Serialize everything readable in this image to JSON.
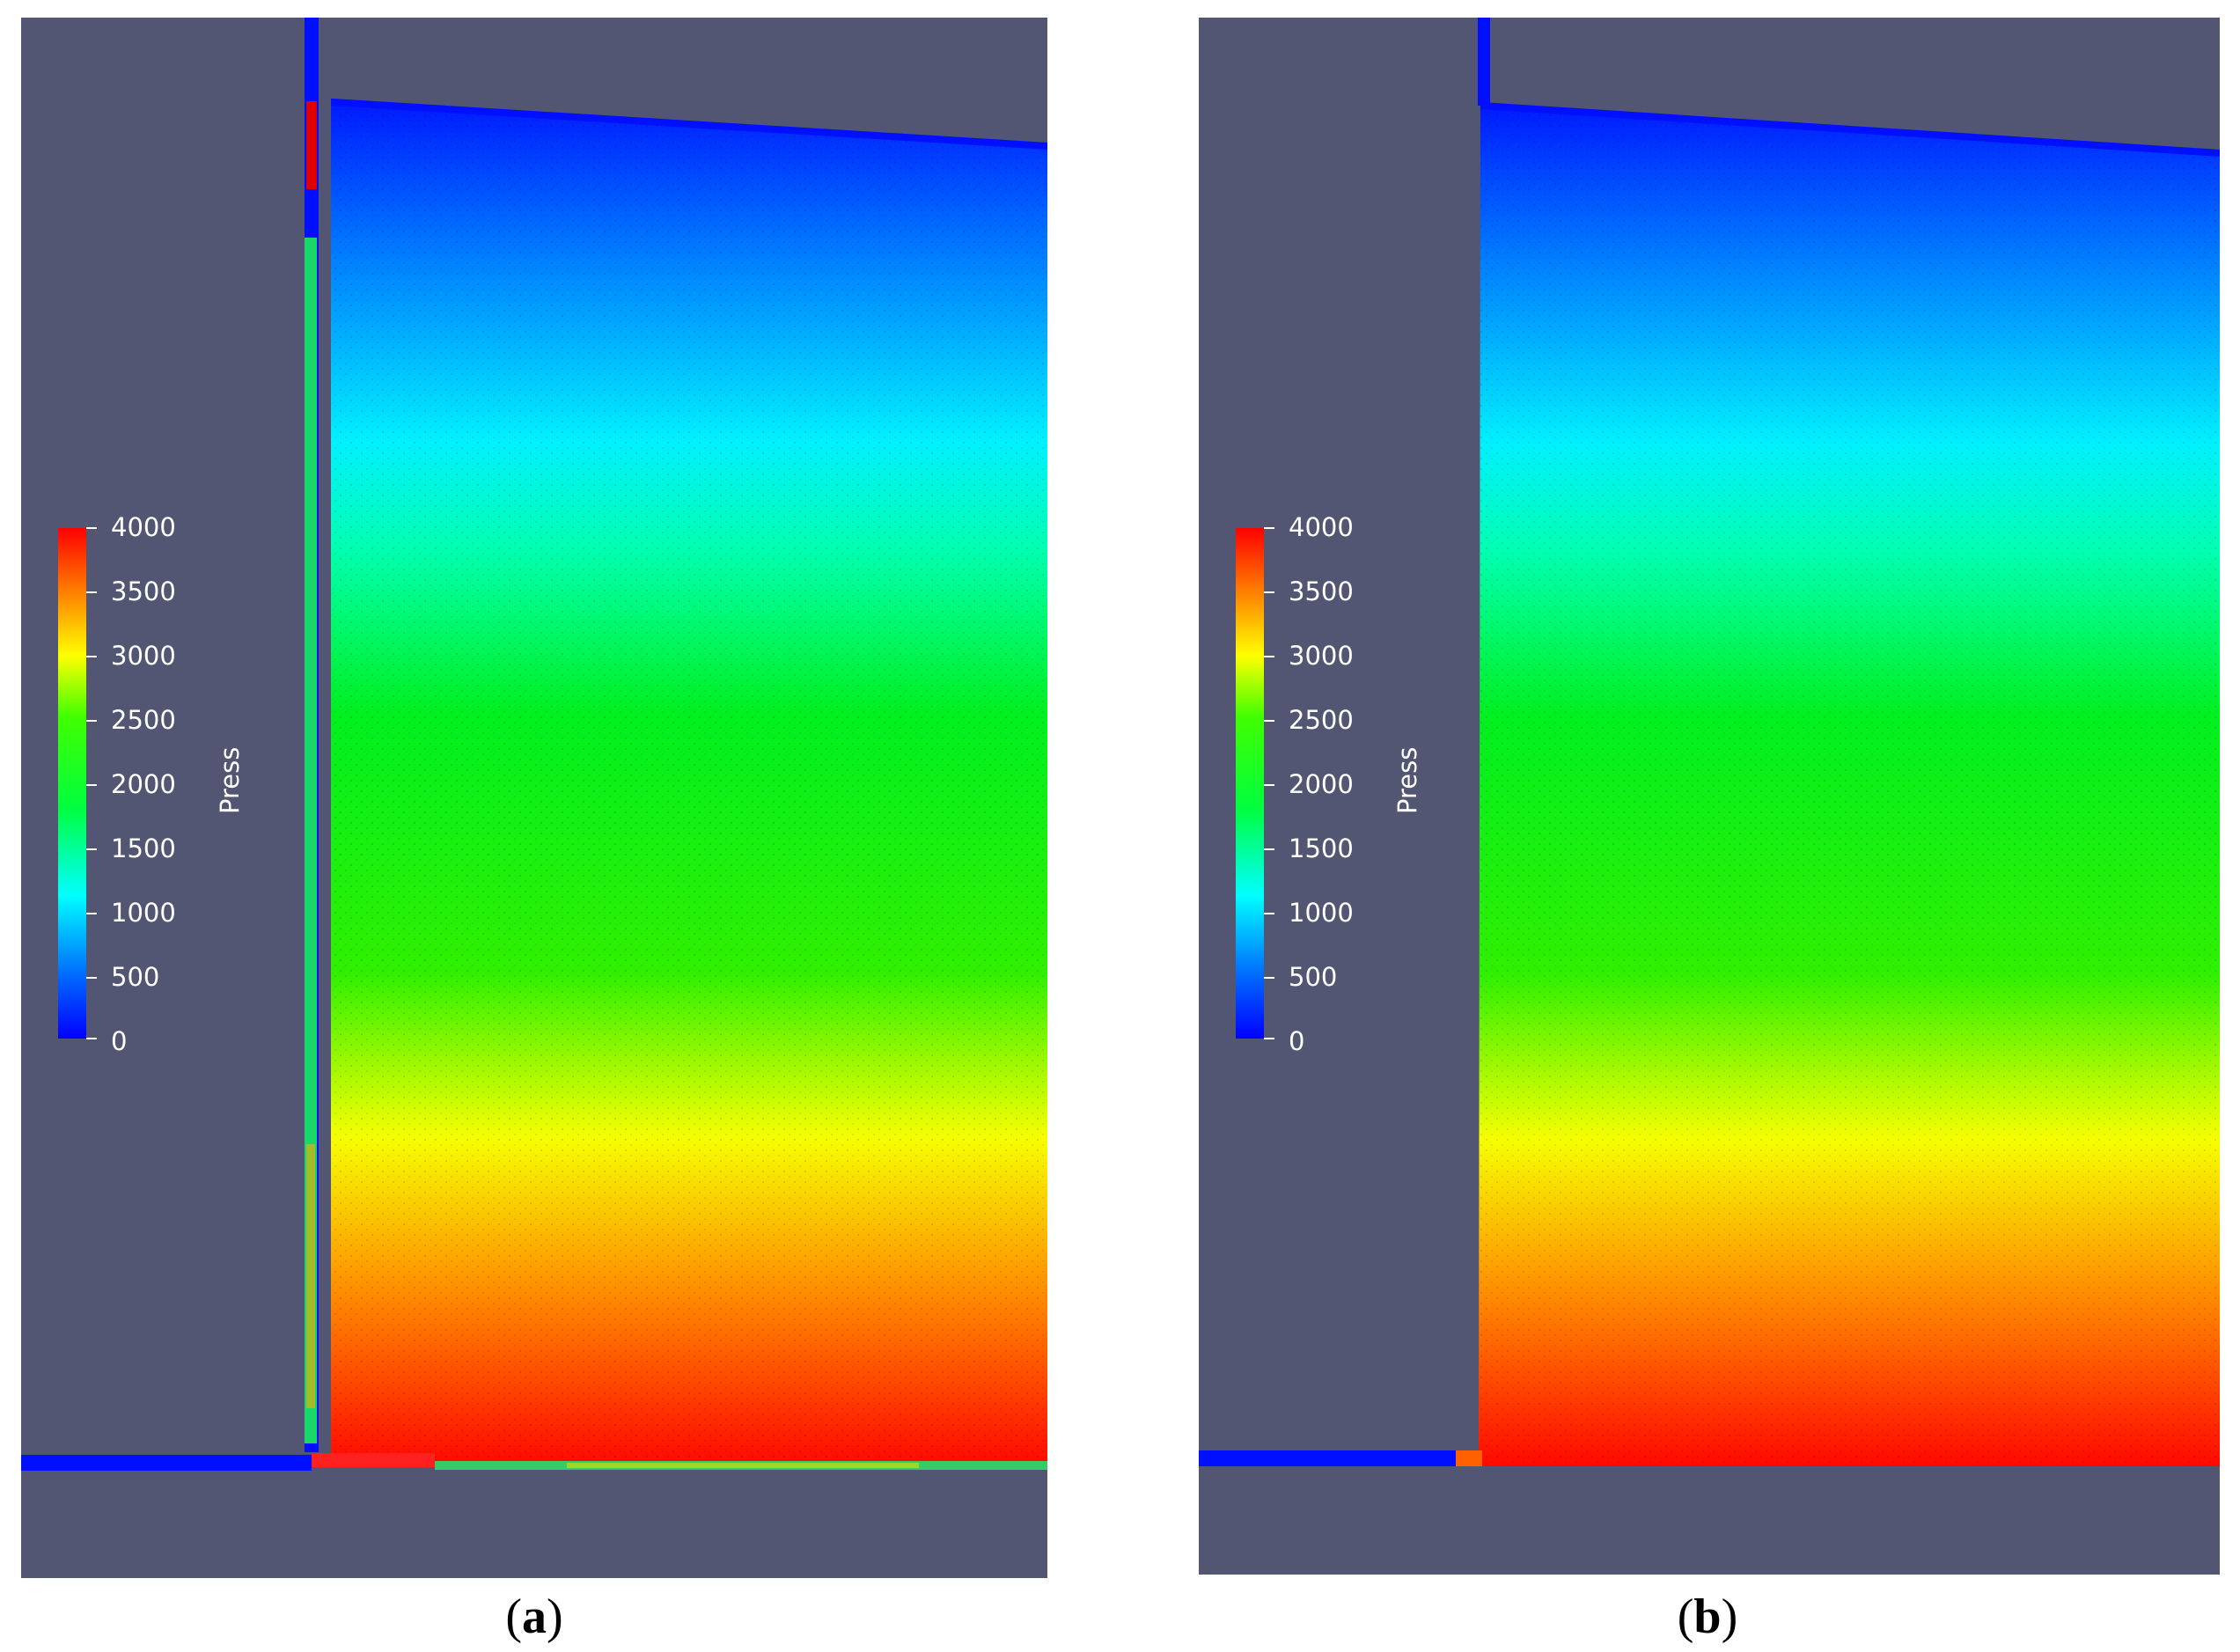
{
  "panels": [
    {
      "id": "a",
      "caption_open": "(",
      "caption_letter": "a",
      "caption_close": ")",
      "colorbar": {
        "title": "Press",
        "ticks": [
          "4000",
          "3500",
          "3000",
          "2500",
          "2000",
          "1500",
          "1000",
          "500",
          "0"
        ]
      }
    },
    {
      "id": "b",
      "caption_open": "(",
      "caption_letter": "b",
      "caption_close": ")",
      "colorbar": {
        "title": "Press",
        "ticks": [
          "4000",
          "3500",
          "3000",
          "2500",
          "2000",
          "1500",
          "1000",
          "500",
          "0"
        ]
      }
    }
  ],
  "colors": {
    "background": "#525672",
    "low": "#0000ff",
    "high": "#ff0000"
  }
}
